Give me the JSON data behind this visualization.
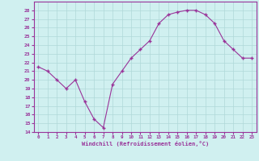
{
  "x": [
    0,
    1,
    2,
    3,
    4,
    5,
    6,
    7,
    8,
    9,
    10,
    11,
    12,
    13,
    14,
    15,
    16,
    17,
    18,
    19,
    20,
    21,
    22,
    23
  ],
  "y": [
    21.5,
    21.0,
    20.0,
    19.0,
    20.0,
    17.5,
    15.5,
    14.5,
    19.5,
    21.0,
    22.5,
    23.5,
    24.5,
    26.5,
    27.5,
    27.8,
    28.0,
    28.0,
    27.5,
    26.5,
    24.5,
    23.5,
    22.5,
    22.5
  ],
  "line_color": "#993399",
  "marker": "+",
  "bg_color": "#d0f0f0",
  "grid_color": "#b0d8d8",
  "xlabel": "Windchill (Refroidissement éolien,°C)",
  "xlabel_color": "#993399",
  "ylim": [
    14,
    29
  ],
  "xlim": [
    -0.5,
    23.5
  ],
  "yticks": [
    14,
    15,
    16,
    17,
    18,
    19,
    20,
    21,
    22,
    23,
    24,
    25,
    26,
    27,
    28
  ],
  "xticks": [
    0,
    1,
    2,
    3,
    4,
    5,
    6,
    7,
    8,
    9,
    10,
    11,
    12,
    13,
    14,
    15,
    16,
    17,
    18,
    19,
    20,
    21,
    22,
    23
  ],
  "tick_label_color": "#993399",
  "spine_color": "#993399"
}
